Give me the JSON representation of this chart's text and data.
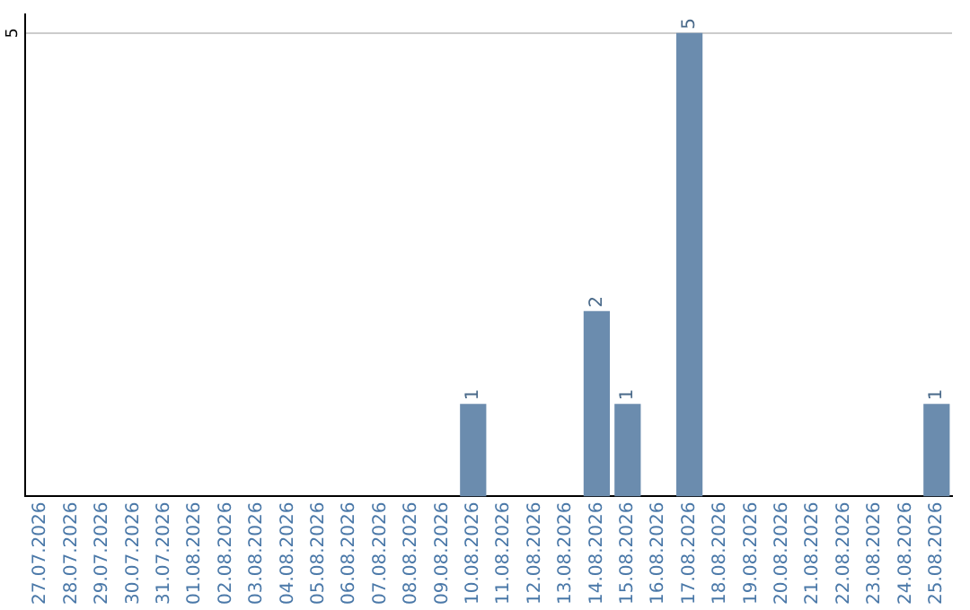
{
  "chart_data": {
    "type": "bar",
    "categories": [
      "27.07.2026",
      "28.07.2026",
      "29.07.2026",
      "30.07.2026",
      "31.07.2026",
      "01.08.2026",
      "02.08.2026",
      "03.08.2026",
      "04.08.2026",
      "05.08.2026",
      "06.08.2026",
      "07.08.2026",
      "08.08.2026",
      "09.08.2026",
      "10.08.2026",
      "11.08.2026",
      "12.08.2026",
      "13.08.2026",
      "14.08.2026",
      "15.08.2026",
      "16.08.2026",
      "17.08.2026",
      "18.08.2026",
      "19.08.2026",
      "20.08.2026",
      "21.08.2026",
      "22.08.2026",
      "23.08.2026",
      "24.08.2026",
      "25.08.2026"
    ],
    "values": [
      null,
      null,
      null,
      null,
      null,
      null,
      null,
      null,
      null,
      null,
      null,
      null,
      null,
      null,
      1,
      null,
      null,
      null,
      2,
      1,
      null,
      5,
      null,
      null,
      null,
      null,
      null,
      null,
      null,
      1
    ],
    "color": "#6b8cae",
    "data_labels": true,
    "ylim": [
      0,
      5.2
    ],
    "yticks": [
      5
    ],
    "grid": "y",
    "legend": false
  }
}
